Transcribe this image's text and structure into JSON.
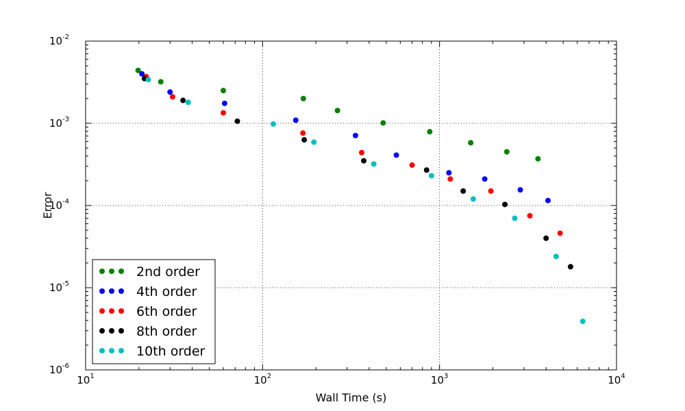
{
  "chart_data": {
    "type": "scatter",
    "title": "",
    "xlabel": "Wall Time (s)",
    "ylabel": "Error",
    "xscale": "log",
    "yscale": "log",
    "xlim": [
      10,
      10000
    ],
    "ylim": [
      1e-06,
      0.01
    ],
    "grid": true,
    "legend_position": "lower-left",
    "x_ticks": [
      {
        "value": 10,
        "base": "10",
        "exp": "1"
      },
      {
        "value": 100,
        "base": "10",
        "exp": "2"
      },
      {
        "value": 1000,
        "base": "10",
        "exp": "3"
      },
      {
        "value": 10000,
        "base": "10",
        "exp": "4"
      }
    ],
    "y_ticks": [
      {
        "value": 1e-06,
        "base": "10",
        "exp": "-6"
      },
      {
        "value": 1e-05,
        "base": "10",
        "exp": "-5"
      },
      {
        "value": 0.0001,
        "base": "10",
        "exp": "-4"
      },
      {
        "value": 0.001,
        "base": "10",
        "exp": "-3"
      },
      {
        "value": 0.01,
        "base": "10",
        "exp": "-2"
      }
    ],
    "series": [
      {
        "name": "2nd order",
        "color": "#008000",
        "x": [
          19.8,
          26.6,
          60.0,
          170,
          265,
          480,
          880,
          1500,
          2400,
          3600
        ],
        "y": [
          0.0044,
          0.0032,
          0.0025,
          0.002,
          0.00143,
          0.00101,
          0.00079,
          0.00058,
          0.00045,
          0.00037
        ]
      },
      {
        "name": "4th order",
        "color": "#0000ff",
        "x": [
          20.8,
          30.0,
          61.0,
          154,
          335,
          570,
          1130,
          1800,
          2860,
          4100
        ],
        "y": [
          0.004,
          0.0024,
          0.00175,
          0.00109,
          0.00071,
          0.00041,
          0.00025,
          0.00021,
          0.000155,
          0.000115
        ]
      },
      {
        "name": "6th order",
        "color": "#ff0000",
        "x": [
          22.0,
          31.0,
          60.0,
          169,
          363,
          700,
          1150,
          1950,
          3240,
          4800
        ],
        "y": [
          0.0037,
          0.0021,
          0.00134,
          0.00076,
          0.00044,
          0.00031,
          0.00021,
          0.00015,
          7.5e-05,
          4.6e-05
        ]
      },
      {
        "name": "8th order",
        "color": "#000000",
        "x": [
          21.5,
          35.5,
          72.0,
          172,
          373,
          845,
          1360,
          2340,
          4000,
          5500
        ],
        "y": [
          0.0035,
          0.0019,
          0.00106,
          0.00063,
          0.00035,
          0.00027,
          0.00015,
          0.000103,
          4e-05,
          1.8e-05
        ]
      },
      {
        "name": "10th order",
        "color": "#00bfbf",
        "x": [
          22.6,
          38.0,
          115,
          195,
          425,
          900,
          1550,
          2660,
          4560,
          6450
        ],
        "y": [
          0.0034,
          0.0018,
          0.00098,
          0.00059,
          0.00032,
          0.00023,
          0.00012,
          7e-05,
          2.4e-05,
          3.9e-06
        ]
      }
    ]
  }
}
